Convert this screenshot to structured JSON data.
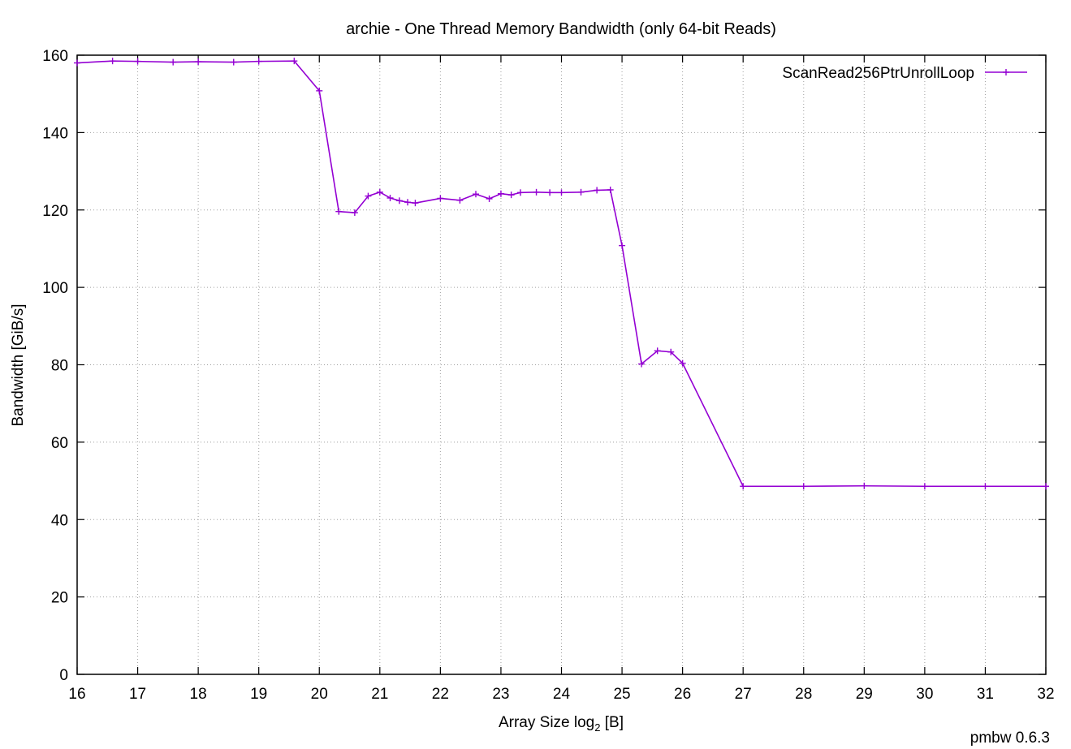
{
  "chart_data": {
    "type": "line",
    "title": "archie - One Thread Memory Bandwidth (only 64-bit Reads)",
    "xlabel_main": "Array Size log",
    "xlabel_sub": "2",
    "xlabel_unit": " [B]",
    "ylabel": "Bandwidth [GiB/s]",
    "xlim": [
      16,
      32
    ],
    "ylim": [
      0,
      160
    ],
    "xticks": [
      16,
      17,
      18,
      19,
      20,
      21,
      22,
      23,
      24,
      25,
      26,
      27,
      28,
      29,
      30,
      31,
      32
    ],
    "yticks": [
      0,
      20,
      40,
      60,
      80,
      100,
      120,
      140,
      160
    ],
    "grid": true,
    "legend_position": "top-right",
    "footer": "pmbw 0.6.3",
    "series": [
      {
        "name": "ScanRead256PtrUnrollLoop",
        "color": "#9400d3",
        "marker": "plus",
        "points": [
          [
            16.0,
            158.0
          ],
          [
            16.585,
            158.5
          ],
          [
            17.0,
            158.4
          ],
          [
            17.585,
            158.2
          ],
          [
            18.0,
            158.3
          ],
          [
            18.585,
            158.2
          ],
          [
            19.0,
            158.4
          ],
          [
            19.585,
            158.5
          ],
          [
            20.0,
            150.8
          ],
          [
            20.322,
            119.6
          ],
          [
            20.585,
            119.3
          ],
          [
            20.807,
            123.6
          ],
          [
            21.0,
            124.6
          ],
          [
            21.17,
            123.1
          ],
          [
            21.322,
            122.4
          ],
          [
            21.459,
            122.0
          ],
          [
            21.585,
            121.8
          ],
          [
            22.0,
            123.0
          ],
          [
            22.322,
            122.5
          ],
          [
            22.585,
            124.1
          ],
          [
            22.807,
            122.9
          ],
          [
            23.0,
            124.2
          ],
          [
            23.17,
            123.9
          ],
          [
            23.322,
            124.5
          ],
          [
            23.585,
            124.6
          ],
          [
            23.807,
            124.5
          ],
          [
            24.0,
            124.5
          ],
          [
            24.322,
            124.6
          ],
          [
            24.585,
            125.1
          ],
          [
            24.807,
            125.2
          ],
          [
            25.0,
            110.8
          ],
          [
            25.322,
            80.2
          ],
          [
            25.585,
            83.6
          ],
          [
            25.807,
            83.3
          ],
          [
            26.0,
            80.4
          ],
          [
            27.0,
            48.6
          ],
          [
            28.0,
            48.6
          ],
          [
            29.0,
            48.7
          ],
          [
            30.0,
            48.6
          ],
          [
            31.0,
            48.6
          ],
          [
            32.0,
            48.6
          ]
        ]
      }
    ]
  }
}
